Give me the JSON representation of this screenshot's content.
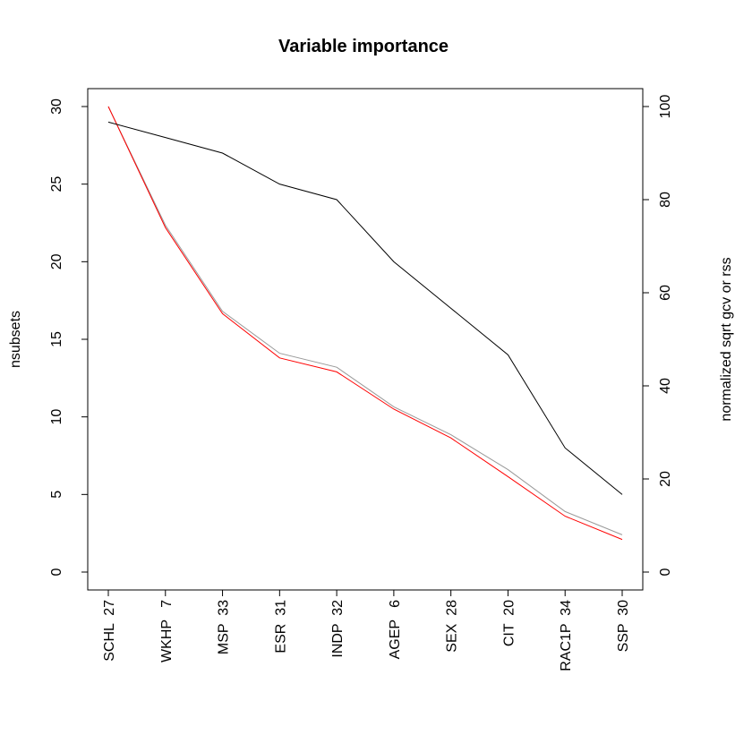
{
  "chart_data": {
    "type": "line",
    "title": "Variable importance",
    "ylabel": "nsubsets",
    "y2label": "normalized sqrt gcv or rss",
    "categories": [
      "SCHL  27",
      "WKHP   7",
      "MSP  33",
      "ESR  31",
      "INDP  32",
      "AGEP   6",
      "SEX  28",
      "CIT  20",
      "RAC1P  34",
      "SSP  30"
    ],
    "ylim": [
      0,
      30
    ],
    "yticks": [
      "0",
      "5",
      "10",
      "15",
      "20",
      "25",
      "30"
    ],
    "y2lim": [
      0,
      100
    ],
    "y2ticks": [
      "0",
      "20",
      "40",
      "60",
      "80",
      "100"
    ],
    "grid": false,
    "series": [
      {
        "axis": "left",
        "color": "#000000",
        "values": [
          29,
          28,
          27,
          25,
          24,
          20,
          17,
          14,
          8,
          5
        ]
      },
      {
        "axis": "right",
        "color": "#999999",
        "values": [
          100,
          74.5,
          56,
          47,
          44,
          35.5,
          29.5,
          22,
          13,
          8
        ]
      },
      {
        "axis": "right",
        "color": "#ff0000",
        "values": [
          100,
          74,
          55.5,
          46,
          43,
          35,
          28.8,
          20.5,
          12,
          7
        ]
      }
    ]
  }
}
